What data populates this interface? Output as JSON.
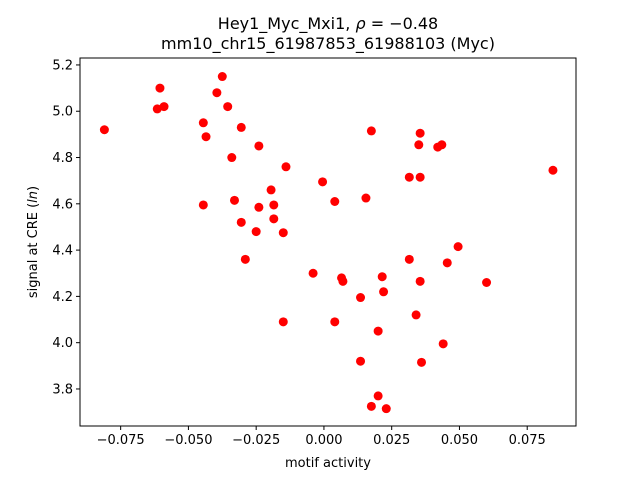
{
  "chart_data": {
    "type": "scatter",
    "title_line1": "Hey1_Myc_Mxi1, ",
    "title_rho_symbol": "ρ",
    "title_rho_value": " = −0.48",
    "title_line2": "mm10_chr15_61987853_61988103 (Myc)",
    "xlabel": "motif activity",
    "ylabel_prefix": "signal at CRE (",
    "ylabel_italic": "ln",
    "ylabel_suffix": ")",
    "xlim": [
      -0.09,
      0.093
    ],
    "ylim": [
      3.64,
      5.23
    ],
    "x_ticks": [
      -0.075,
      -0.05,
      -0.025,
      0.0,
      0.025,
      0.05,
      0.075
    ],
    "x_tick_labels": [
      "−0.075",
      "−0.050",
      "−0.025",
      "0.000",
      "0.025",
      "0.050",
      "0.075"
    ],
    "y_ticks": [
      3.8,
      4.0,
      4.2,
      4.4,
      4.6,
      4.8,
      5.0,
      5.2
    ],
    "y_tick_labels": [
      "3.8",
      "4.0",
      "4.2",
      "4.4",
      "4.6",
      "4.8",
      "5.0",
      "5.2"
    ],
    "grid": false,
    "marker_color": "#ff0000",
    "points": [
      {
        "x": -0.081,
        "y": 4.92
      },
      {
        "x": -0.0605,
        "y": 5.1
      },
      {
        "x": -0.059,
        "y": 5.02
      },
      {
        "x": -0.0615,
        "y": 5.01
      },
      {
        "x": -0.0375,
        "y": 5.15
      },
      {
        "x": -0.0395,
        "y": 5.08
      },
      {
        "x": -0.0355,
        "y": 5.02
      },
      {
        "x": -0.0445,
        "y": 4.95
      },
      {
        "x": -0.0435,
        "y": 4.89
      },
      {
        "x": -0.0305,
        "y": 4.93
      },
      {
        "x": -0.034,
        "y": 4.8
      },
      {
        "x": -0.024,
        "y": 4.85
      },
      {
        "x": -0.014,
        "y": 4.76
      },
      {
        "x": -0.0445,
        "y": 4.595
      },
      {
        "x": -0.033,
        "y": 4.615
      },
      {
        "x": -0.0305,
        "y": 4.52
      },
      {
        "x": -0.029,
        "y": 4.36
      },
      {
        "x": -0.025,
        "y": 4.48
      },
      {
        "x": -0.024,
        "y": 4.585
      },
      {
        "x": -0.0195,
        "y": 4.66
      },
      {
        "x": -0.0185,
        "y": 4.595
      },
      {
        "x": -0.0185,
        "y": 4.535
      },
      {
        "x": -0.015,
        "y": 4.475
      },
      {
        "x": -0.015,
        "y": 4.09
      },
      {
        "x": -0.0005,
        "y": 4.695
      },
      {
        "x": 0.004,
        "y": 4.61
      },
      {
        "x": -0.004,
        "y": 4.3
      },
      {
        "x": 0.004,
        "y": 4.09
      },
      {
        "x": 0.0065,
        "y": 4.28
      },
      {
        "x": 0.007,
        "y": 4.265
      },
      {
        "x": 0.0135,
        "y": 4.195
      },
      {
        "x": 0.0135,
        "y": 3.92
      },
      {
        "x": 0.0155,
        "y": 4.625
      },
      {
        "x": 0.0175,
        "y": 4.915
      },
      {
        "x": 0.0175,
        "y": 3.725
      },
      {
        "x": 0.02,
        "y": 3.77
      },
      {
        "x": 0.02,
        "y": 4.05
      },
      {
        "x": 0.0215,
        "y": 4.285
      },
      {
        "x": 0.022,
        "y": 4.22
      },
      {
        "x": 0.023,
        "y": 3.715
      },
      {
        "x": 0.0315,
        "y": 4.715
      },
      {
        "x": 0.0315,
        "y": 4.36
      },
      {
        "x": 0.034,
        "y": 4.12
      },
      {
        "x": 0.035,
        "y": 4.855
      },
      {
        "x": 0.0355,
        "y": 4.905
      },
      {
        "x": 0.0355,
        "y": 4.715
      },
      {
        "x": 0.0355,
        "y": 4.265
      },
      {
        "x": 0.036,
        "y": 3.915
      },
      {
        "x": 0.042,
        "y": 4.845
      },
      {
        "x": 0.0435,
        "y": 4.855
      },
      {
        "x": 0.044,
        "y": 3.995
      },
      {
        "x": 0.0455,
        "y": 4.345
      },
      {
        "x": 0.0495,
        "y": 4.415
      },
      {
        "x": 0.06,
        "y": 4.26
      },
      {
        "x": 0.0845,
        "y": 4.745
      }
    ]
  }
}
